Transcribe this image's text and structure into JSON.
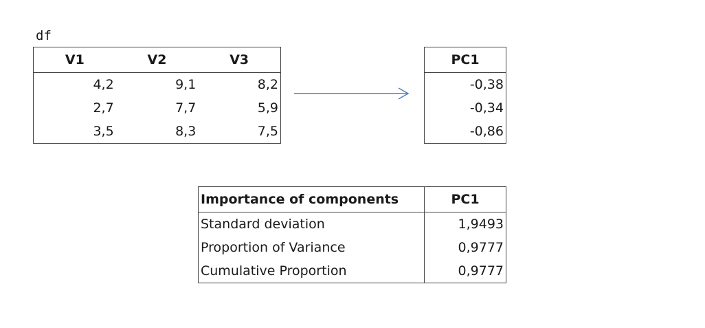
{
  "df": {
    "label": "df",
    "columns": [
      "V1",
      "V2",
      "V3"
    ],
    "rows": [
      [
        "4,2",
        "9,1",
        "8,2"
      ],
      [
        "2,7",
        "7,7",
        "5,9"
      ],
      [
        "3,5",
        "8,3",
        "7,5"
      ]
    ]
  },
  "pc": {
    "header": "PC1",
    "values": [
      "-0,38",
      "-0,34",
      "-0,86"
    ]
  },
  "importance": {
    "header_name": "Importance of components",
    "header_pc": "PC1",
    "rows": [
      {
        "name": "Standard deviation",
        "value": "1,9493"
      },
      {
        "name": "Proportion of Variance",
        "value": "0,9777"
      },
      {
        "name": "Cumulative Proportion",
        "value": "0,9777"
      }
    ]
  },
  "colors": {
    "arrow": "#4f7fbf",
    "border": "#444444"
  }
}
